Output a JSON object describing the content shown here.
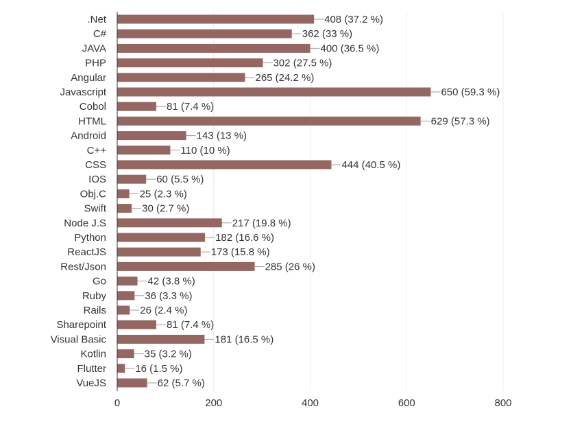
{
  "chart_data": {
    "type": "bar",
    "orientation": "horizontal",
    "title": "",
    "xlabel": "",
    "ylabel": "",
    "xlim": [
      0,
      800
    ],
    "x_ticks": [
      0,
      200,
      400,
      600,
      800
    ],
    "grid": true,
    "bar_color": "#946763",
    "categories": [
      ".Net",
      "C#",
      "JAVA",
      "PHP",
      "Angular",
      "Javascript",
      "Cobol",
      "HTML",
      "Android",
      "C++",
      "CSS",
      "IOS",
      "Obj.C",
      "Swift",
      "Node J.S",
      "Python",
      "ReactJS",
      "Rest/Json",
      "Go",
      "Ruby",
      "Rails",
      "Sharepoint",
      "Visual Basic",
      "Kotlin",
      "Flutter",
      "VueJS"
    ],
    "values": [
      408,
      362,
      400,
      302,
      265,
      650,
      81,
      629,
      143,
      110,
      444,
      60,
      25,
      30,
      217,
      182,
      173,
      285,
      42,
      36,
      26,
      81,
      181,
      35,
      16,
      62
    ],
    "data_labels": [
      "408 (37.2 %)",
      "362 (33 %)",
      "400 (36.5 %)",
      "302 (27.5 %)",
      "265 (24.2 %)",
      "650 (59.3 %)",
      "81 (7.4 %)",
      "629 (57.3 %)",
      "143 (13 %)",
      "110 (10 %)",
      "444 (40.5 %)",
      "60 (5.5 %)",
      "25 (2.3 %)",
      "30 (2.7 %)",
      "217 (19.8 %)",
      "182 (16.6 %)",
      "173 (15.8 %)",
      "285 (26 %)",
      "42 (3.8 %)",
      "36 (3.3 %)",
      "26 (2.4 %)",
      "81 (7.4 %)",
      "181 (16.5 %)",
      "35 (3.2 %)",
      "16 (1.5 %)",
      "62 (5.7 %)"
    ]
  }
}
